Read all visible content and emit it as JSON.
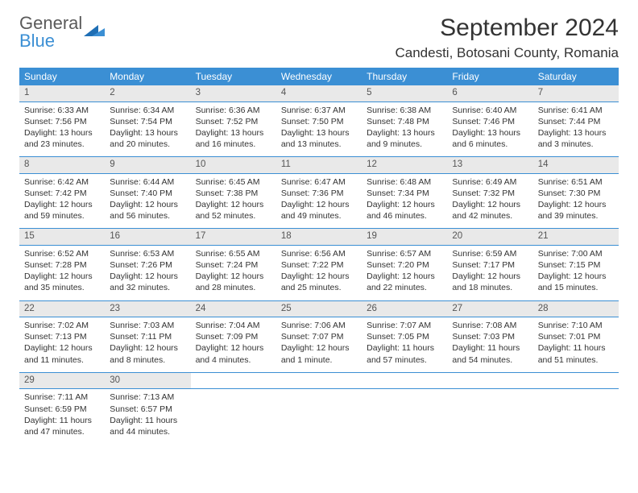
{
  "logo": {
    "text1": "General",
    "text2": "Blue"
  },
  "title": "September 2024",
  "location": "Candesti, Botosani County, Romania",
  "colors": {
    "header_bg": "#3b8fd4",
    "header_text": "#ffffff",
    "daynum_bg": "#e9e9e9",
    "border": "#3b8fd4",
    "text": "#333333"
  },
  "day_headers": [
    "Sunday",
    "Monday",
    "Tuesday",
    "Wednesday",
    "Thursday",
    "Friday",
    "Saturday"
  ],
  "weeks": [
    [
      {
        "n": "1",
        "sr": "Sunrise: 6:33 AM",
        "ss": "Sunset: 7:56 PM",
        "d1": "Daylight: 13 hours",
        "d2": "and 23 minutes."
      },
      {
        "n": "2",
        "sr": "Sunrise: 6:34 AM",
        "ss": "Sunset: 7:54 PM",
        "d1": "Daylight: 13 hours",
        "d2": "and 20 minutes."
      },
      {
        "n": "3",
        "sr": "Sunrise: 6:36 AM",
        "ss": "Sunset: 7:52 PM",
        "d1": "Daylight: 13 hours",
        "d2": "and 16 minutes."
      },
      {
        "n": "4",
        "sr": "Sunrise: 6:37 AM",
        "ss": "Sunset: 7:50 PM",
        "d1": "Daylight: 13 hours",
        "d2": "and 13 minutes."
      },
      {
        "n": "5",
        "sr": "Sunrise: 6:38 AM",
        "ss": "Sunset: 7:48 PM",
        "d1": "Daylight: 13 hours",
        "d2": "and 9 minutes."
      },
      {
        "n": "6",
        "sr": "Sunrise: 6:40 AM",
        "ss": "Sunset: 7:46 PM",
        "d1": "Daylight: 13 hours",
        "d2": "and 6 minutes."
      },
      {
        "n": "7",
        "sr": "Sunrise: 6:41 AM",
        "ss": "Sunset: 7:44 PM",
        "d1": "Daylight: 13 hours",
        "d2": "and 3 minutes."
      }
    ],
    [
      {
        "n": "8",
        "sr": "Sunrise: 6:42 AM",
        "ss": "Sunset: 7:42 PM",
        "d1": "Daylight: 12 hours",
        "d2": "and 59 minutes."
      },
      {
        "n": "9",
        "sr": "Sunrise: 6:44 AM",
        "ss": "Sunset: 7:40 PM",
        "d1": "Daylight: 12 hours",
        "d2": "and 56 minutes."
      },
      {
        "n": "10",
        "sr": "Sunrise: 6:45 AM",
        "ss": "Sunset: 7:38 PM",
        "d1": "Daylight: 12 hours",
        "d2": "and 52 minutes."
      },
      {
        "n": "11",
        "sr": "Sunrise: 6:47 AM",
        "ss": "Sunset: 7:36 PM",
        "d1": "Daylight: 12 hours",
        "d2": "and 49 minutes."
      },
      {
        "n": "12",
        "sr": "Sunrise: 6:48 AM",
        "ss": "Sunset: 7:34 PM",
        "d1": "Daylight: 12 hours",
        "d2": "and 46 minutes."
      },
      {
        "n": "13",
        "sr": "Sunrise: 6:49 AM",
        "ss": "Sunset: 7:32 PM",
        "d1": "Daylight: 12 hours",
        "d2": "and 42 minutes."
      },
      {
        "n": "14",
        "sr": "Sunrise: 6:51 AM",
        "ss": "Sunset: 7:30 PM",
        "d1": "Daylight: 12 hours",
        "d2": "and 39 minutes."
      }
    ],
    [
      {
        "n": "15",
        "sr": "Sunrise: 6:52 AM",
        "ss": "Sunset: 7:28 PM",
        "d1": "Daylight: 12 hours",
        "d2": "and 35 minutes."
      },
      {
        "n": "16",
        "sr": "Sunrise: 6:53 AM",
        "ss": "Sunset: 7:26 PM",
        "d1": "Daylight: 12 hours",
        "d2": "and 32 minutes."
      },
      {
        "n": "17",
        "sr": "Sunrise: 6:55 AM",
        "ss": "Sunset: 7:24 PM",
        "d1": "Daylight: 12 hours",
        "d2": "and 28 minutes."
      },
      {
        "n": "18",
        "sr": "Sunrise: 6:56 AM",
        "ss": "Sunset: 7:22 PM",
        "d1": "Daylight: 12 hours",
        "d2": "and 25 minutes."
      },
      {
        "n": "19",
        "sr": "Sunrise: 6:57 AM",
        "ss": "Sunset: 7:20 PM",
        "d1": "Daylight: 12 hours",
        "d2": "and 22 minutes."
      },
      {
        "n": "20",
        "sr": "Sunrise: 6:59 AM",
        "ss": "Sunset: 7:17 PM",
        "d1": "Daylight: 12 hours",
        "d2": "and 18 minutes."
      },
      {
        "n": "21",
        "sr": "Sunrise: 7:00 AM",
        "ss": "Sunset: 7:15 PM",
        "d1": "Daylight: 12 hours",
        "d2": "and 15 minutes."
      }
    ],
    [
      {
        "n": "22",
        "sr": "Sunrise: 7:02 AM",
        "ss": "Sunset: 7:13 PM",
        "d1": "Daylight: 12 hours",
        "d2": "and 11 minutes."
      },
      {
        "n": "23",
        "sr": "Sunrise: 7:03 AM",
        "ss": "Sunset: 7:11 PM",
        "d1": "Daylight: 12 hours",
        "d2": "and 8 minutes."
      },
      {
        "n": "24",
        "sr": "Sunrise: 7:04 AM",
        "ss": "Sunset: 7:09 PM",
        "d1": "Daylight: 12 hours",
        "d2": "and 4 minutes."
      },
      {
        "n": "25",
        "sr": "Sunrise: 7:06 AM",
        "ss": "Sunset: 7:07 PM",
        "d1": "Daylight: 12 hours",
        "d2": "and 1 minute."
      },
      {
        "n": "26",
        "sr": "Sunrise: 7:07 AM",
        "ss": "Sunset: 7:05 PM",
        "d1": "Daylight: 11 hours",
        "d2": "and 57 minutes."
      },
      {
        "n": "27",
        "sr": "Sunrise: 7:08 AM",
        "ss": "Sunset: 7:03 PM",
        "d1": "Daylight: 11 hours",
        "d2": "and 54 minutes."
      },
      {
        "n": "28",
        "sr": "Sunrise: 7:10 AM",
        "ss": "Sunset: 7:01 PM",
        "d1": "Daylight: 11 hours",
        "d2": "and 51 minutes."
      }
    ],
    [
      {
        "n": "29",
        "sr": "Sunrise: 7:11 AM",
        "ss": "Sunset: 6:59 PM",
        "d1": "Daylight: 11 hours",
        "d2": "and 47 minutes."
      },
      {
        "n": "30",
        "sr": "Sunrise: 7:13 AM",
        "ss": "Sunset: 6:57 PM",
        "d1": "Daylight: 11 hours",
        "d2": "and 44 minutes."
      },
      null,
      null,
      null,
      null,
      null
    ]
  ]
}
